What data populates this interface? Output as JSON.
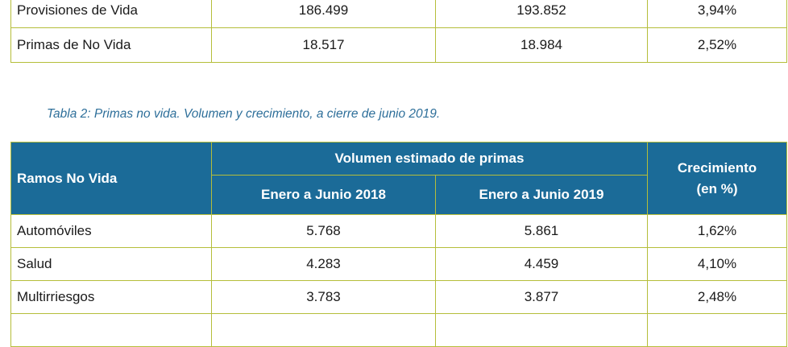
{
  "table1": {
    "rows": [
      {
        "label": "Provisiones de Vida",
        "v2018": "186.499",
        "v2019": "193.852",
        "growth": "3,94%"
      },
      {
        "label": "Primas de No Vida",
        "v2018": "18.517",
        "v2019": "18.984",
        "growth": "2,52%"
      }
    ]
  },
  "caption": "Tabla 2: Primas no vida. Volumen y crecimiento, a cierre de junio 2019.",
  "table2": {
    "header": {
      "ramos": "Ramos No Vida",
      "volumen": "Volumen estimado de primas",
      "col2018": "Enero a Junio 2018",
      "col2019": "Enero a Junio 2019",
      "crecimiento_line1": "Crecimiento",
      "crecimiento_line2": "(en %)"
    },
    "rows": [
      {
        "label": "Automóviles",
        "v2018": "5.768",
        "v2019": "5.861",
        "growth": "1,62%"
      },
      {
        "label": "Salud",
        "v2018": "4.283",
        "v2019": "4.459",
        "growth": "4,10%"
      },
      {
        "label": "Multirriesgos",
        "v2018": "3.783",
        "v2019": "3.877",
        "growth": "2,48%"
      }
    ]
  }
}
